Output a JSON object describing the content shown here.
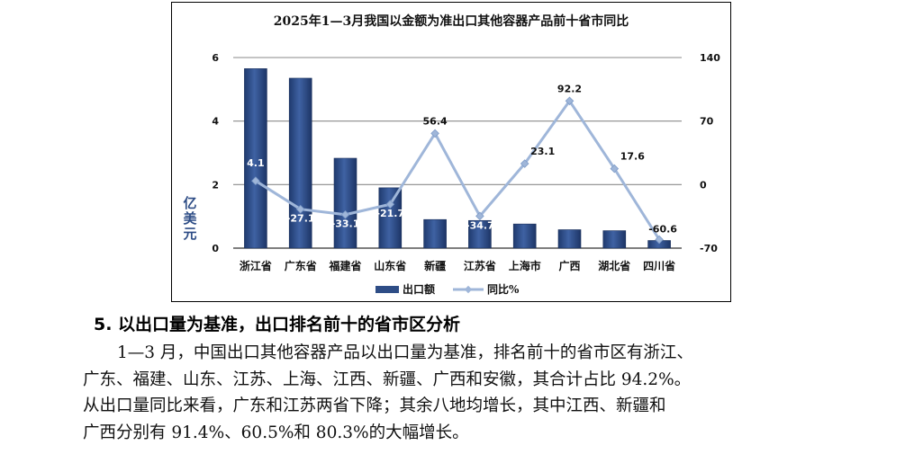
{
  "chart_data": {
    "type": "bar",
    "title": "2025年1—3月我国以金额为准出口其他容器产品前十省市同比",
    "categories": [
      "浙江省",
      "广东省",
      "福建省",
      "山东省",
      "新疆",
      "江苏省",
      "上海市",
      "广西",
      "湖北省",
      "四川省"
    ],
    "ylabel": "亿美元",
    "ylim": [
      0,
      6
    ],
    "yticks": [
      "0",
      "2",
      "4",
      "6"
    ],
    "y2lim": [
      -70,
      140
    ],
    "y2ticks": [
      "-70",
      "0",
      "70",
      "140"
    ],
    "grid": true,
    "legend_position": "bottom",
    "series": [
      {
        "name": "出口额",
        "type": "bar",
        "axis": "left",
        "color": "#2e4d86",
        "values": [
          5.65,
          5.35,
          2.83,
          1.9,
          0.9,
          0.87,
          0.76,
          0.58,
          0.55,
          0.24
        ]
      },
      {
        "name": "同比%",
        "type": "line",
        "axis": "right",
        "color": "#9fb6d9",
        "values": [
          4.1,
          -27.1,
          -33.1,
          -21.7,
          56.4,
          -34.7,
          23.1,
          92.2,
          17.6,
          -60.6
        ],
        "labels": [
          "4.1",
          "-27.1",
          "-33.1",
          "-21.7",
          "56.4",
          "-34.7",
          "23.1",
          "92.2",
          "17.6",
          "-60.6"
        ]
      }
    ]
  },
  "heading": "5. 以出口量为基准，出口排名前十的省市区分析",
  "paragraph_lines": [
    "1—3 月，中国出口其他容器产品以出口量为基准，排名前十的省市区有浙江、",
    "广东、福建、山东、江苏、上海、江西、新疆、广西和安徽，其合计占比 94.2%。",
    "从出口量同比来看，广东和江苏两省下降；其余八地均增长，其中江西、新疆和",
    "广西分别有 91.4%、60.5%和 80.3%的大幅增长。"
  ]
}
